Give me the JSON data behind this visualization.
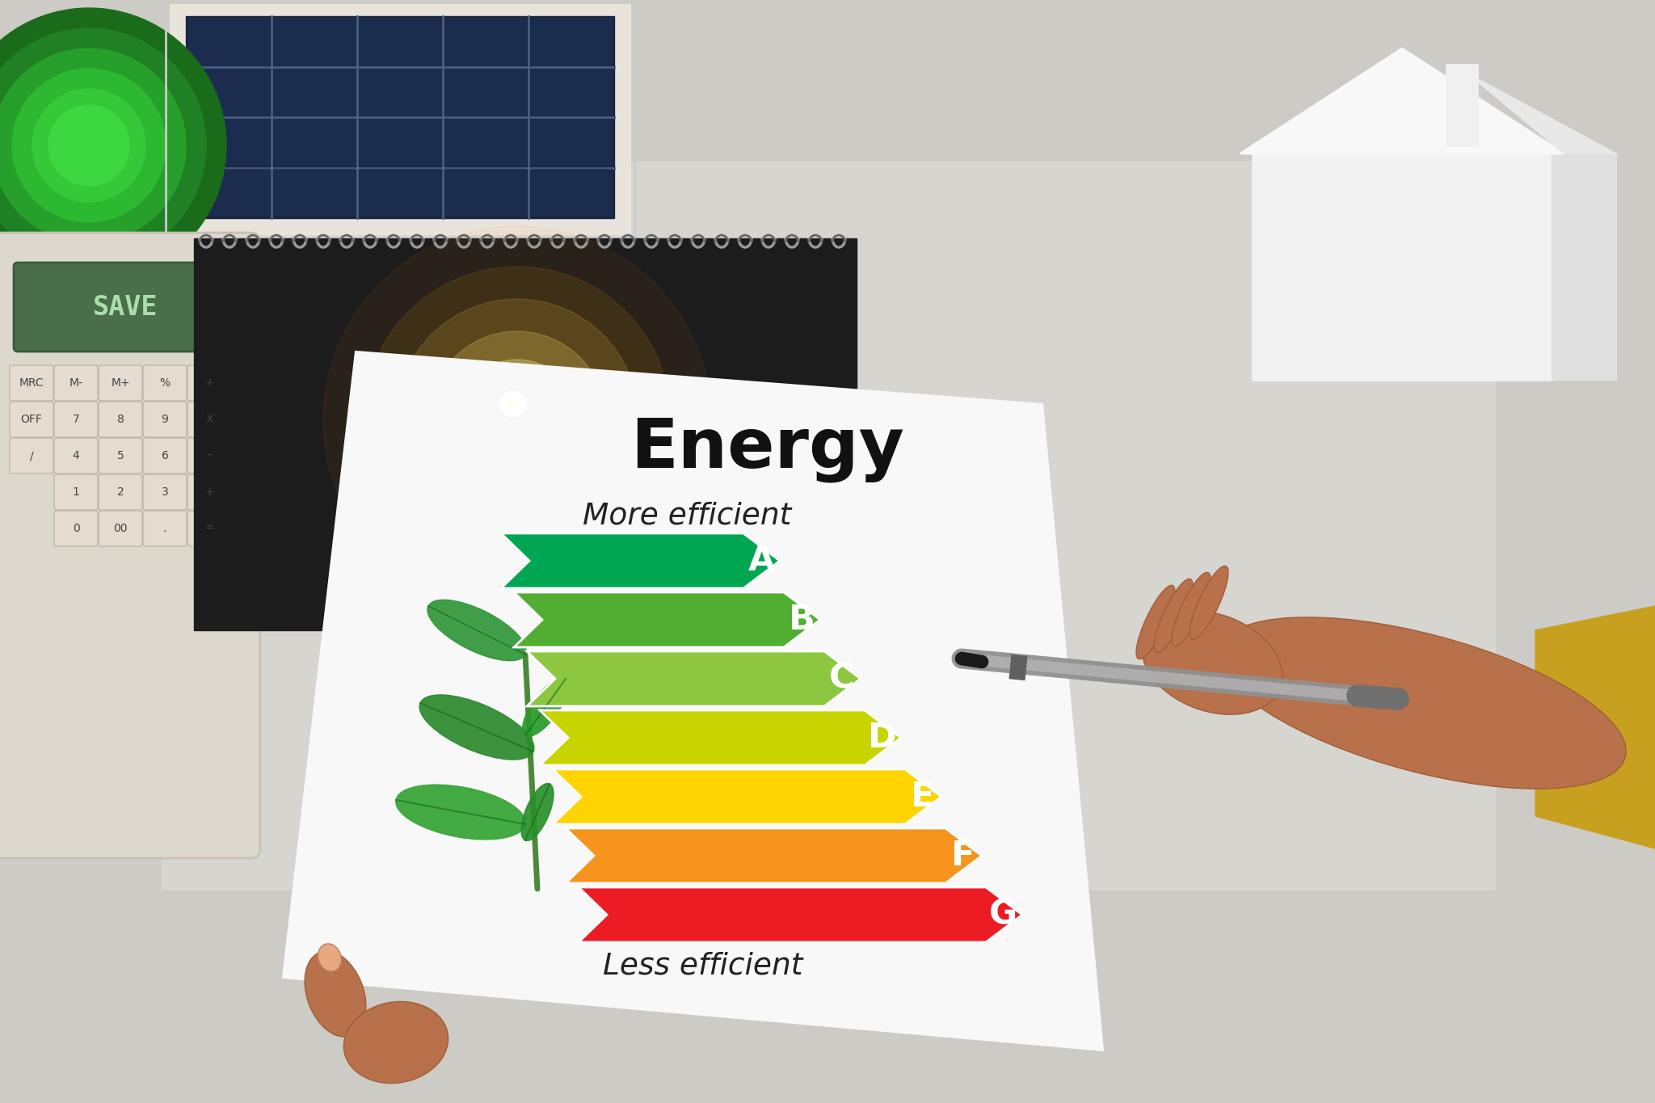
{
  "bg_color": "#cccbc6",
  "desk_color": "#d8d6d0",
  "paper_color": "#f8f8f8",
  "notebook_color": "#1c1c1c",
  "title": "Energy",
  "subtitle1": "More efficient",
  "subtitle2": "Less efficient",
  "ratings": [
    "A",
    "B",
    "C",
    "D",
    "E",
    "F",
    "G"
  ],
  "rating_colors": [
    "#00a651",
    "#52ae32",
    "#8dc63f",
    "#c8d400",
    "#ffd400",
    "#f7941d",
    "#ed1c24"
  ],
  "solar_panel_color": "#1a2540",
  "calculator_color": "#ddd8ce",
  "calculator_screen_color": "#4a6e4a",
  "calculator_text": "SAVE",
  "figsize": [
    20.48,
    13.65
  ],
  "dpi": 100
}
